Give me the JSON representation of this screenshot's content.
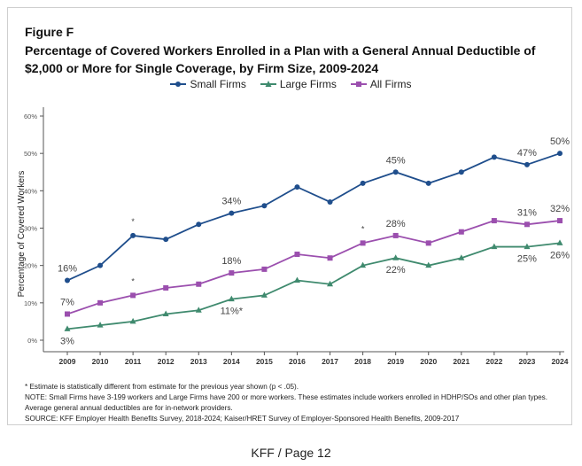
{
  "figure_label": "Figure F",
  "footer": "KFF / Page 12",
  "notes": [
    "* Estimate is statistically different from estimate for the previous year shown (p < .05).",
    "NOTE: Small Firms have 3-199 workers and Large Firms have 200 or more workers. These estimates include workers enrolled in HDHP/SOs and other plan types. Average general annual deductibles are for in-network providers.",
    "SOURCE: KFF Employer Health Benefits Survey, 2018-2024; Kaiser/HRET Survey of Employer-Sponsored Health Benefits, 2009-2017"
  ],
  "chart_data": {
    "type": "line",
    "title": "Percentage of Covered Workers Enrolled in a Plan with a General Annual Deductible of $2,000 or More for Single Coverage, by Firm Size, 2009-2024",
    "xlabel": "",
    "ylabel": "Percentage of Covered Workers",
    "ylim": [
      0,
      60
    ],
    "yticks": [
      "0%",
      "10%",
      "20%",
      "30%",
      "40%",
      "50%",
      "60%"
    ],
    "x": [
      "2009",
      "2010",
      "2011",
      "2012",
      "2013",
      "2014",
      "2015",
      "2016",
      "2017",
      "2018",
      "2019",
      "2020",
      "2021",
      "2022",
      "2023",
      "2024"
    ],
    "legend_position": "top",
    "series": [
      {
        "name": "Small Firms",
        "color": "#1f4e8c",
        "marker": "circle",
        "values": [
          16,
          20,
          28,
          27,
          31,
          34,
          36,
          41,
          37,
          42,
          45,
          42,
          45,
          49,
          47,
          50
        ]
      },
      {
        "name": "Large Firms",
        "color": "#3f8a6e",
        "marker": "triangle",
        "values": [
          3,
          4,
          5,
          7,
          8,
          11,
          12,
          16,
          15,
          20,
          22,
          20,
          22,
          25,
          25,
          26
        ]
      },
      {
        "name": "All Firms",
        "color": "#9b4fae",
        "marker": "square",
        "values": [
          7,
          10,
          12,
          14,
          15,
          18,
          19,
          23,
          22,
          26,
          28,
          26,
          29,
          32,
          31,
          32
        ]
      }
    ],
    "annotations": [
      {
        "series": 0,
        "year": "2009",
        "text": "16%",
        "pos": "above"
      },
      {
        "series": 0,
        "year": "2011",
        "text": "*",
        "pos": "above"
      },
      {
        "series": 0,
        "year": "2014",
        "text": "34%",
        "pos": "above"
      },
      {
        "series": 0,
        "year": "2019",
        "text": "45%",
        "pos": "above"
      },
      {
        "series": 0,
        "year": "2023",
        "text": "47%",
        "pos": "above"
      },
      {
        "series": 0,
        "year": "2024",
        "text": "50%",
        "pos": "above"
      },
      {
        "series": 2,
        "year": "2009",
        "text": "7%",
        "pos": "above"
      },
      {
        "series": 2,
        "year": "2011",
        "text": "*",
        "pos": "above"
      },
      {
        "series": 2,
        "year": "2014",
        "text": "18%",
        "pos": "above"
      },
      {
        "series": 2,
        "year": "2018",
        "text": "*",
        "pos": "above"
      },
      {
        "series": 2,
        "year": "2019",
        "text": "28%",
        "pos": "above"
      },
      {
        "series": 2,
        "year": "2023",
        "text": "31%",
        "pos": "above"
      },
      {
        "series": 2,
        "year": "2024",
        "text": "32%",
        "pos": "above"
      },
      {
        "series": 1,
        "year": "2009",
        "text": "3%",
        "pos": "below"
      },
      {
        "series": 1,
        "year": "2014",
        "text": "11%*",
        "pos": "below"
      },
      {
        "series": 1,
        "year": "2019",
        "text": "22%",
        "pos": "below"
      },
      {
        "series": 1,
        "year": "2023",
        "text": "25%",
        "pos": "below"
      },
      {
        "series": 1,
        "year": "2024",
        "text": "26%",
        "pos": "below"
      }
    ]
  }
}
